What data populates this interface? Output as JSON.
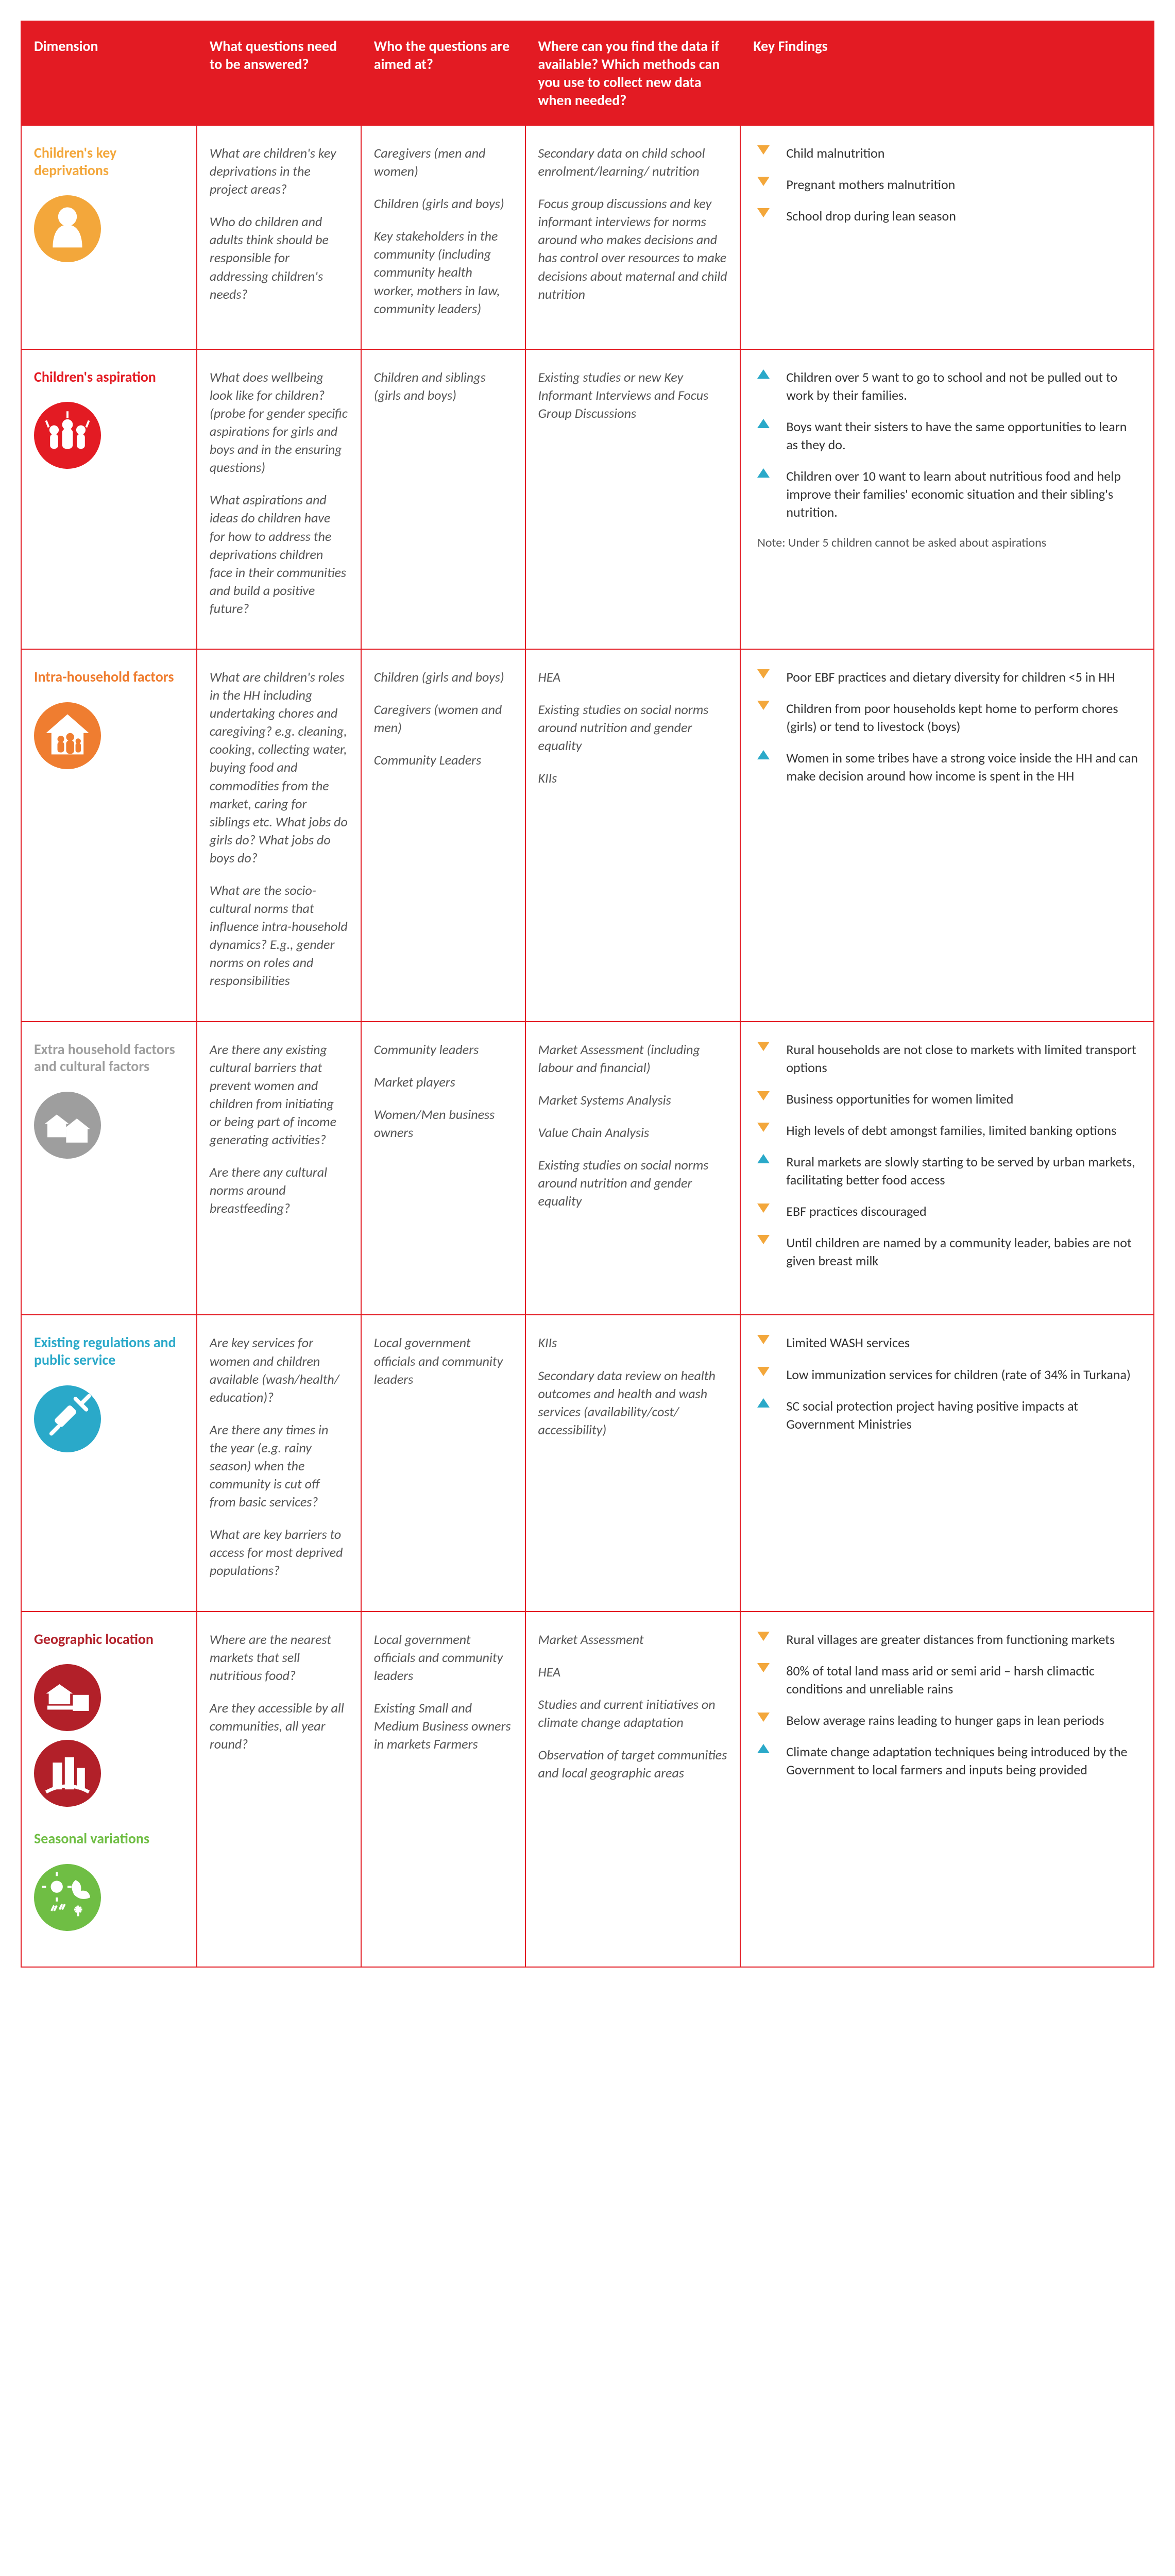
{
  "headers": [
    "Dimension",
    "What questions need to be answered?",
    "Who the questions are aimed at?",
    "Where can you find the data if available? Which methods can you use to collect new data when needed?",
    "Key Findings"
  ],
  "rows": [
    {
      "dimension": {
        "title": "Children's key deprivations",
        "color": "#f3a73b",
        "extra_title": null,
        "extra_color": null,
        "icons": [
          "child"
        ]
      },
      "questions": [
        "What are children's key deprivations in the project areas?",
        "Who do children and adults think should be responsible for addressing children's needs?"
      ],
      "audience": [
        "Caregivers (men and women)",
        "Children (girls and boys)",
        "Key stakeholders in the community (including community health worker, mothers in law, community leaders)"
      ],
      "sources": [
        "Secondary data on child school enrolment/learning/ nutrition",
        "Focus group discussions and key informant interviews for norms around who makes decisions and has control over resources to make decisions about maternal and child nutrition"
      ],
      "findings": [
        {
          "dir": "down",
          "text": "Child malnutrition"
        },
        {
          "dir": "down",
          "text": "Pregnant mothers malnutrition"
        },
        {
          "dir": "down",
          "text": "School drop during lean season"
        }
      ],
      "note": null
    },
    {
      "dimension": {
        "title": "Children's aspiration",
        "color": "#e31b23",
        "extra_title": null,
        "extra_color": null,
        "icons": [
          "aspiration"
        ]
      },
      "questions": [
        "What does wellbeing look like for children? (probe for gender specific aspirations for girls and boys and in the ensuring questions)",
        "What aspirations and ideas do children have for how to address the deprivations children face in their communities and build a positive future?"
      ],
      "audience": [
        "Children and siblings (girls and boys)"
      ],
      "sources": [
        "Existing studies or new Key Informant Interviews and Focus Group Discussions"
      ],
      "findings": [
        {
          "dir": "up",
          "text": "Children over 5 want to go to school and not be pulled out to work by their families."
        },
        {
          "dir": "up",
          "text": "Boys want their sisters to have the same opportunities to learn as they do."
        },
        {
          "dir": "up",
          "text": "Children over 10 want to learn about nutritious food and help improve their families' economic situation and their sibling's nutrition."
        }
      ],
      "note": "Note: Under 5 children cannot be asked about aspirations"
    },
    {
      "dimension": {
        "title": "Intra-household factors",
        "color": "#ef7d30",
        "extra_title": null,
        "extra_color": null,
        "icons": [
          "household"
        ]
      },
      "questions": [
        "What are children's roles in the HH including undertaking chores and caregiving? e.g. cleaning, cooking, collecting water, buying food and commodities from the market, caring for siblings etc. What jobs do girls do? What jobs do boys do?",
        "What are the socio-cultural norms that influence intra-household dynamics? E.g., gender norms on roles and responsibilities"
      ],
      "audience": [
        "Children (girls and boys)",
        "Caregivers (women and men)",
        "Community Leaders"
      ],
      "sources": [
        "HEA",
        "Existing studies on social norms around nutrition and gender equality",
        "KIIs"
      ],
      "findings": [
        {
          "dir": "down",
          "text": "Poor EBF practices and dietary diversity for children <5 in HH"
        },
        {
          "dir": "down",
          "text": "Children from poor households kept home to perform chores (girls) or tend to livestock (boys)"
        },
        {
          "dir": "up",
          "text": "Women in some tribes have a strong voice inside the HH and can make decision around how income is spent in the HH"
        }
      ],
      "note": null
    },
    {
      "dimension": {
        "title": "Extra household factors and cultural factors",
        "color": "#9e9e9e",
        "extra_title": null,
        "extra_color": null,
        "icons": [
          "extra"
        ]
      },
      "questions": [
        "Are there any existing cultural barriers that prevent women and children from initiating or being part of income generating activities?",
        "Are there any cultural norms around breastfeeding?"
      ],
      "audience": [
        "Community leaders",
        "Market players",
        "Women/Men business owners"
      ],
      "sources": [
        "Market Assessment (including labour and financial)",
        "Market Systems Analysis",
        "Value Chain Analysis",
        "Existing studies on social norms around nutrition and gender equality"
      ],
      "findings": [
        {
          "dir": "down",
          "text": "Rural households are not close to markets with limited transport options"
        },
        {
          "dir": "down",
          "text": "Business opportunities for women limited"
        },
        {
          "dir": "down",
          "text": "High levels of debt amongst families, limited banking options"
        },
        {
          "dir": "up",
          "text": "Rural markets are slowly starting to be served by urban markets, facilitating better food access"
        },
        {
          "dir": "down",
          "text": "EBF practices discouraged"
        },
        {
          "dir": "down",
          "text": "Until children are named by a community leader, babies are not given breast milk"
        }
      ],
      "note": null
    },
    {
      "dimension": {
        "title": "Existing regulations and public service",
        "color": "#2aa9c9",
        "extra_title": null,
        "extra_color": null,
        "icons": [
          "syringe"
        ]
      },
      "questions": [
        "Are key services for women and children available (wash/health/ education)?",
        "Are there any times in the year (e.g. rainy season) when the community is cut off from basic services?",
        "What are key barriers to access for most deprived populations?"
      ],
      "audience": [
        "Local government officials and community leaders"
      ],
      "sources": [
        "KIIs",
        "Secondary data review on health outcomes and health and wash services (availability/cost/ accessibility)"
      ],
      "findings": [
        {
          "dir": "down",
          "text": "Limited WASH services"
        },
        {
          "dir": "down",
          "text": "Low immunization services for children  (rate of 34% in Turkana)"
        },
        {
          "dir": "up",
          "text": "SC social protection project having positive impacts at Government Ministries"
        }
      ],
      "note": null
    },
    {
      "dimension": {
        "title": "Geographic location",
        "color": "#b22029",
        "extra_title": "Seasonal variations",
        "extra_color": "#6fbe44",
        "icons": [
          "geo1",
          "geo2",
          "season"
        ]
      },
      "questions": [
        "Where are the nearest markets that sell nutritious food?",
        "Are they accessible by all communities, all year round?"
      ],
      "audience": [
        "Local government officials and community leaders",
        "Existing Small and Medium Business owners in markets Farmers"
      ],
      "sources": [
        "Market Assessment",
        "HEA",
        "Studies and current initiatives on climate change adaptation",
        "Observation of target communities and local geographic areas"
      ],
      "findings": [
        {
          "dir": "down",
          "text": "Rural villages are greater distances from functioning markets"
        },
        {
          "dir": "down",
          "text": "80% of total land mass arid or semi arid – harsh climactic conditions and unreliable rains"
        },
        {
          "dir": "down",
          "text": "Below average rains leading to hunger gaps in lean periods"
        },
        {
          "dir": "up",
          "text": "Climate change adaptation techniques being introduced by the Government to local farmers and inputs being provided"
        }
      ],
      "note": null
    }
  ],
  "icons": {
    "child": {
      "bg": "#f3a73b"
    },
    "aspiration": {
      "bg": "#e31b23"
    },
    "household": {
      "bg": "#ef7d30"
    },
    "extra": {
      "bg": "#9e9e9e"
    },
    "syringe": {
      "bg": "#2aa9c9"
    },
    "geo1": {
      "bg": "#b22029"
    },
    "geo2": {
      "bg": "#b22029"
    },
    "season": {
      "bg": "#6fbe44"
    }
  }
}
